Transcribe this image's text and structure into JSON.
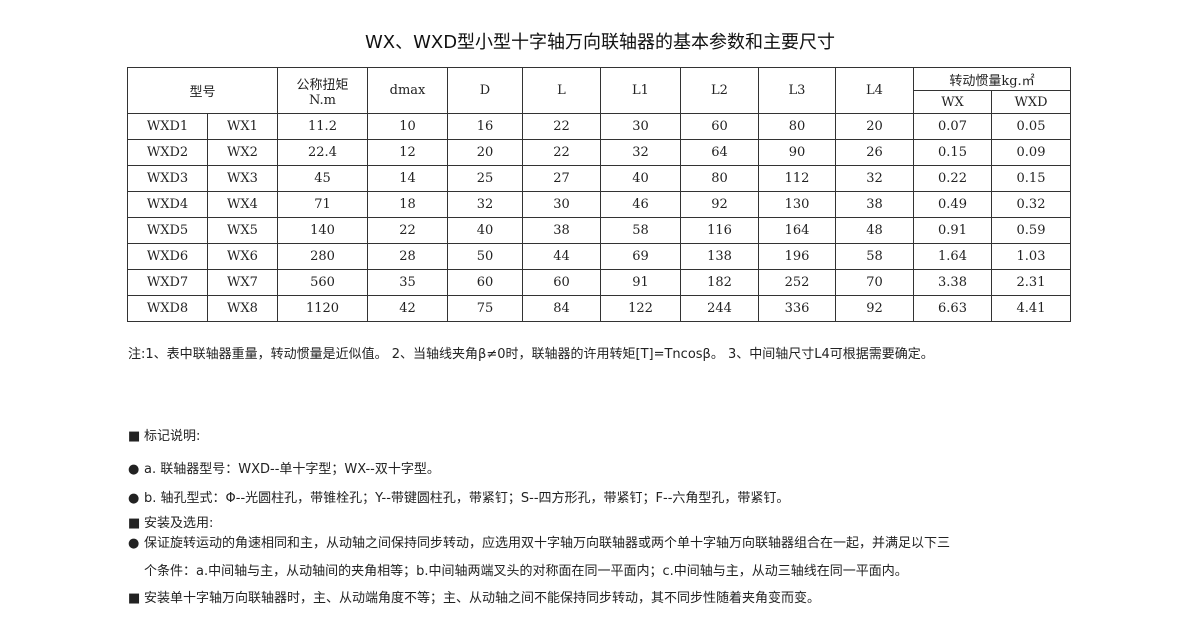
{
  "title": "WX、WXD型小型十字轴万向联轴器的基本参数和主要尺寸",
  "table": {
    "headers": {
      "model": "型号",
      "torque": "公称扭矩",
      "torque_unit": "N.m",
      "dmax": "dmax",
      "D": "D",
      "L": "L",
      "L1": "L1",
      "L2": "L2",
      "L3": "L3",
      "L4": "L4",
      "inertia": "转动惯量kg.㎡",
      "wx": "WX",
      "wxd": "WXD"
    },
    "rows": [
      [
        "WXD1",
        "WX1",
        "11.2",
        "10",
        "16",
        "22",
        "30",
        "60",
        "80",
        "20",
        "0.07",
        "0.05"
      ],
      [
        "WXD2",
        "WX2",
        "22.4",
        "12",
        "20",
        "22",
        "32",
        "64",
        "90",
        "26",
        "0.15",
        "0.09"
      ],
      [
        "WXD3",
        "WX3",
        "45",
        "14",
        "25",
        "27",
        "40",
        "80",
        "112",
        "32",
        "0.22",
        "0.15"
      ],
      [
        "WXD4",
        "WX4",
        "71",
        "18",
        "32",
        "30",
        "46",
        "92",
        "130",
        "38",
        "0.49",
        "0.32"
      ],
      [
        "WXD5",
        "WX5",
        "140",
        "22",
        "40",
        "38",
        "58",
        "116",
        "164",
        "48",
        "0.91",
        "0.59"
      ],
      [
        "WXD6",
        "WX6",
        "280",
        "28",
        "50",
        "44",
        "69",
        "138",
        "196",
        "58",
        "1.64",
        "1.03"
      ],
      [
        "WXD7",
        "WX7",
        "560",
        "35",
        "60",
        "60",
        "91",
        "182",
        "252",
        "70",
        "3.38",
        "2.31"
      ],
      [
        "WXD8",
        "WX8",
        "1120",
        "42",
        "75",
        "84",
        "122",
        "244",
        "336",
        "92",
        "6.63",
        "4.41"
      ]
    ]
  },
  "note": "注:1、表中联轴器重量，转动惯量是近似值。 2、当轴线夹角β≠0时，联轴器的许用转矩[T]=Tncosβ。 3、中间轴尺寸L4可根据需要确定。",
  "lines": [
    {
      "bullet": "■",
      "text": "标记说明:"
    },
    {
      "bullet": "●",
      "text": "a. 联轴器型号：WXD--单十字型；WX--双十字型。"
    },
    {
      "bullet": "●",
      "text": "b. 轴孔型式：Φ--光圆柱孔，带锥栓孔；Y--带键圆柱孔，带紧钉；S--四方形孔，带紧钉；F--六角型孔，带紧钉。"
    },
    {
      "bullet": "■",
      "text": "安装及选用:"
    },
    {
      "bullet": "●",
      "text": "保证旋转运动的角速相同和主，从动轴之间保持同步转动，应选用双十字轴万向联轴器或两个单十字轴万向联轴器组合在一起，并满足以下三"
    },
    {
      "bullet": "",
      "text": "个条件：a.中间轴与主，从动轴间的夹角相等；b.中间轴两端叉头的对称面在同一平面内；c.中间轴与主，从动三轴线在同一平面内。"
    },
    {
      "bullet": "■",
      "text": "安装单十字轴万向联轴器时，主、从动端角度不等；主、从动轴之间不能保持同步转动，其不同步性随着夹角变而变。"
    }
  ]
}
